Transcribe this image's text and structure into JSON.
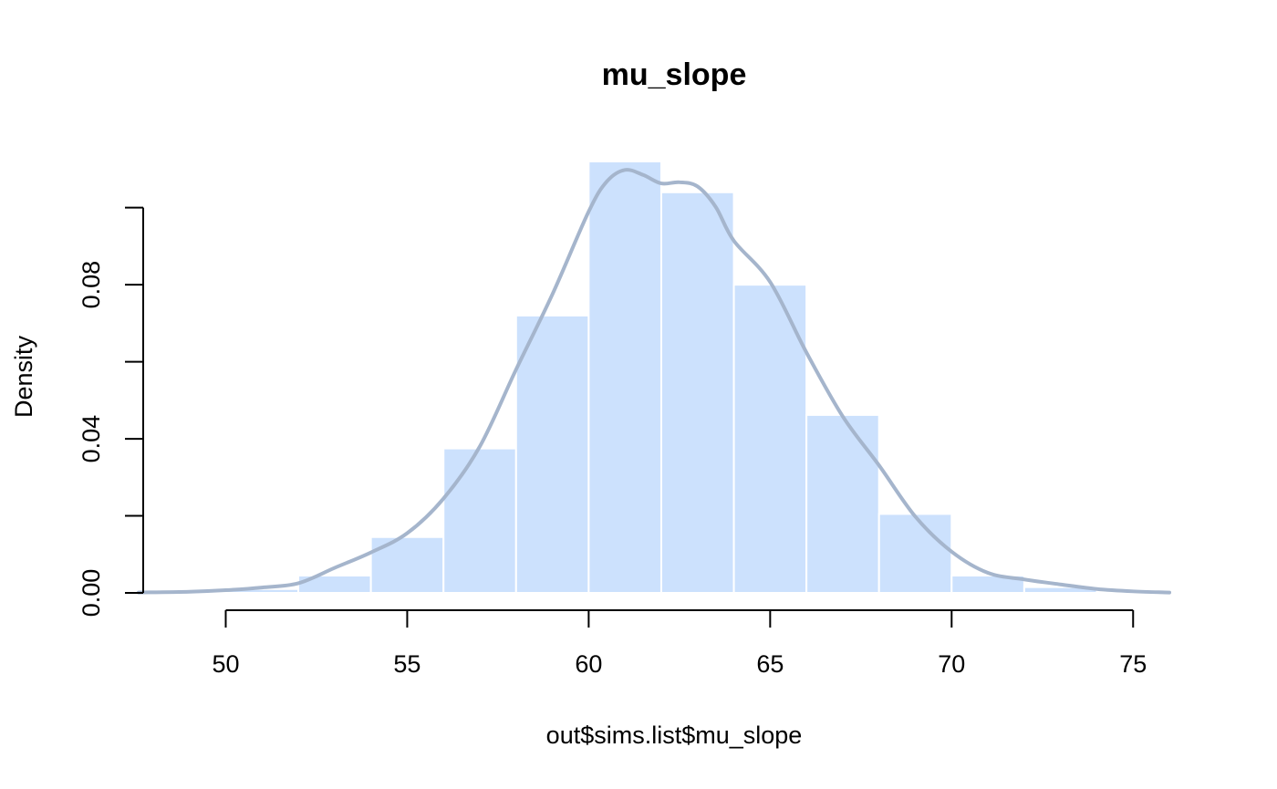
{
  "chart_data": {
    "type": "bar",
    "title": "mu_slope",
    "xlabel": "out$sims.list$mu_slope",
    "ylabel": "Density",
    "xlim": [
      47.5,
      76.2
    ],
    "ylim": [
      0,
      0.112
    ],
    "x_ticks": [
      50,
      55,
      60,
      65,
      70,
      75
    ],
    "y_ticks": [
      0,
      0.02,
      0.04,
      0.06,
      0.08,
      0.1
    ],
    "y_tick_labels": [
      "0.00",
      "",
      "0.04",
      "",
      "0.08",
      ""
    ],
    "bins": [
      {
        "x0": 50,
        "x1": 52,
        "value": 0.001
      },
      {
        "x0": 52,
        "x1": 54,
        "value": 0.0045
      },
      {
        "x0": 54,
        "x1": 56,
        "value": 0.0145
      },
      {
        "x0": 56,
        "x1": 58,
        "value": 0.0375
      },
      {
        "x0": 58,
        "x1": 60,
        "value": 0.072
      },
      {
        "x0": 60,
        "x1": 62,
        "value": 0.112
      },
      {
        "x0": 62,
        "x1": 64,
        "value": 0.104
      },
      {
        "x0": 64,
        "x1": 66,
        "value": 0.08
      },
      {
        "x0": 66,
        "x1": 68,
        "value": 0.0462
      },
      {
        "x0": 68,
        "x1": 70,
        "value": 0.0205
      },
      {
        "x0": 70,
        "x1": 72,
        "value": 0.0045
      },
      {
        "x0": 72,
        "x1": 74,
        "value": 0.0015
      }
    ],
    "density_curve": {
      "x": [
        47.6,
        49,
        50,
        51,
        52,
        53,
        54,
        55,
        56,
        57,
        58,
        59,
        60,
        60.5,
        61,
        61.5,
        62,
        62.5,
        63,
        63.5,
        64,
        65,
        66,
        67,
        68,
        69,
        70,
        71,
        72,
        73,
        74,
        75,
        76
      ],
      "y": [
        0.0001,
        0.0003,
        0.0007,
        0.0014,
        0.0025,
        0.0065,
        0.0105,
        0.0155,
        0.0245,
        0.038,
        0.058,
        0.0775,
        0.099,
        0.1068,
        0.1098,
        0.1085,
        0.1063,
        0.1066,
        0.1055,
        0.1002,
        0.0914,
        0.0807,
        0.0624,
        0.0458,
        0.0331,
        0.0198,
        0.0107,
        0.0052,
        0.0035,
        0.0022,
        0.001,
        0.0004,
        0.0001
      ]
    },
    "colors": {
      "bar_fill": "#cce1fd",
      "bar_border": "#ffffff",
      "curve": "#a5b5cc",
      "axis": "#000000"
    },
    "grid": false,
    "legend": "none"
  }
}
